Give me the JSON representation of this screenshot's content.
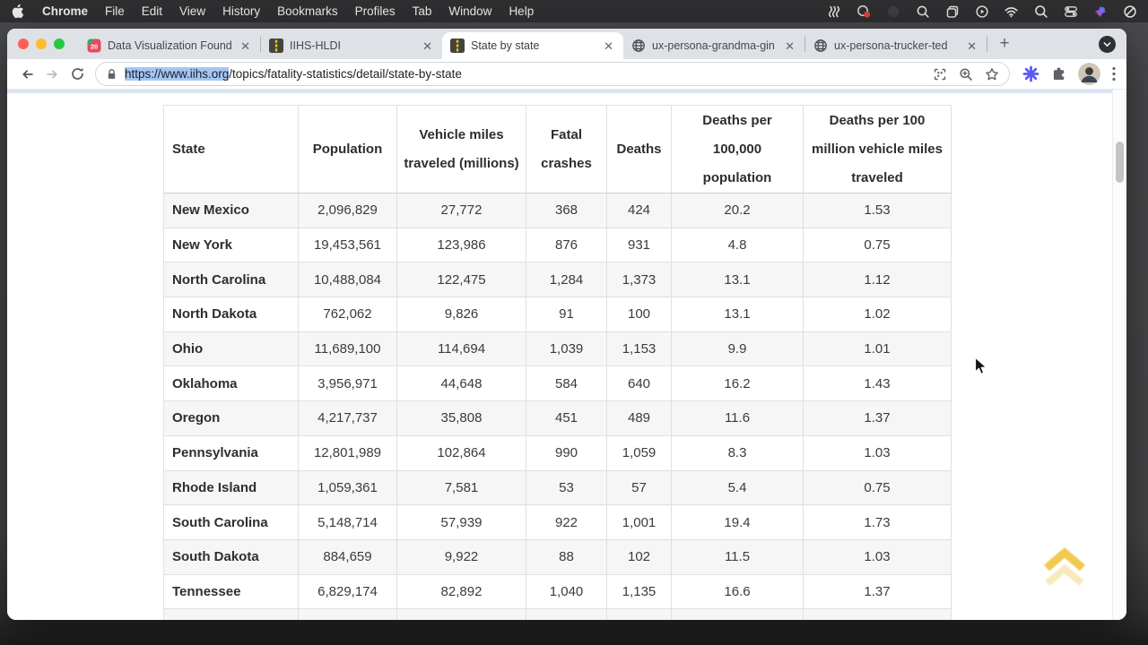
{
  "menubar": {
    "items": [
      "Chrome",
      "File",
      "Edit",
      "View",
      "History",
      "Bookmarks",
      "Profiles",
      "Tab",
      "Window",
      "Help"
    ],
    "status_icons": [
      "keystroke-waves",
      "screen-record",
      "dimmed-app",
      "zoom-tool",
      "mission-control",
      "now-playing",
      "wifi",
      "spotlight-search",
      "control-center",
      "colorful-app",
      "focus-mode"
    ]
  },
  "tabs": [
    {
      "label": "Data Visualization Founda",
      "favicon": "dataviz",
      "active": false
    },
    {
      "label": "IIHS-HLDI",
      "favicon": "iihs",
      "active": false
    },
    {
      "label": "State by state",
      "favicon": "iihs",
      "active": true
    },
    {
      "label": "ux-persona-grandma-gin",
      "favicon": "globe",
      "active": false
    },
    {
      "label": "ux-persona-trucker-ted",
      "favicon": "globe",
      "active": false
    }
  ],
  "omnibox": {
    "url_selected": "https://www.iihs.org",
    "url_rest": "/topics/fatality-statistics/detail/state-by-state"
  },
  "table": {
    "headers": [
      "State",
      "Population",
      "Vehicle miles traveled (millions)",
      "Fatal crashes",
      "Deaths",
      "Deaths per 100,000 population",
      "Deaths per 100 million vehicle miles traveled"
    ],
    "rows": [
      {
        "state": "New Mexico",
        "cells": [
          "2,096,829",
          "27,772",
          "368",
          "424",
          "20.2",
          "1.53"
        ]
      },
      {
        "state": "New York",
        "cells": [
          "19,453,561",
          "123,986",
          "876",
          "931",
          "4.8",
          "0.75"
        ]
      },
      {
        "state": "North Carolina",
        "cells": [
          "10,488,084",
          "122,475",
          "1,284",
          "1,373",
          "13.1",
          "1.12"
        ]
      },
      {
        "state": "North Dakota",
        "cells": [
          "762,062",
          "9,826",
          "91",
          "100",
          "13.1",
          "1.02"
        ]
      },
      {
        "state": "Ohio",
        "cells": [
          "11,689,100",
          "114,694",
          "1,039",
          "1,153",
          "9.9",
          "1.01"
        ]
      },
      {
        "state": "Oklahoma",
        "cells": [
          "3,956,971",
          "44,648",
          "584",
          "640",
          "16.2",
          "1.43"
        ]
      },
      {
        "state": "Oregon",
        "cells": [
          "4,217,737",
          "35,808",
          "451",
          "489",
          "11.6",
          "1.37"
        ]
      },
      {
        "state": "Pennsylvania",
        "cells": [
          "12,801,989",
          "102,864",
          "990",
          "1,059",
          "8.3",
          "1.03"
        ]
      },
      {
        "state": "Rhode Island",
        "cells": [
          "1,059,361",
          "7,581",
          "53",
          "57",
          "5.4",
          "0.75"
        ]
      },
      {
        "state": "South Carolina",
        "cells": [
          "5,148,714",
          "57,939",
          "922",
          "1,001",
          "19.4",
          "1.73"
        ]
      },
      {
        "state": "South Dakota",
        "cells": [
          "884,659",
          "9,922",
          "88",
          "102",
          "11.5",
          "1.03"
        ]
      },
      {
        "state": "Tennessee",
        "cells": [
          "6,829,174",
          "82,892",
          "1,040",
          "1,135",
          "16.6",
          "1.37"
        ]
      }
    ]
  },
  "colors": {
    "accent_selection": "#a4c6f6",
    "back_to_top_gold": "#eec43e",
    "tabstrip_bg": "#dee1e6",
    "row_shade": "#f6f6f6"
  }
}
